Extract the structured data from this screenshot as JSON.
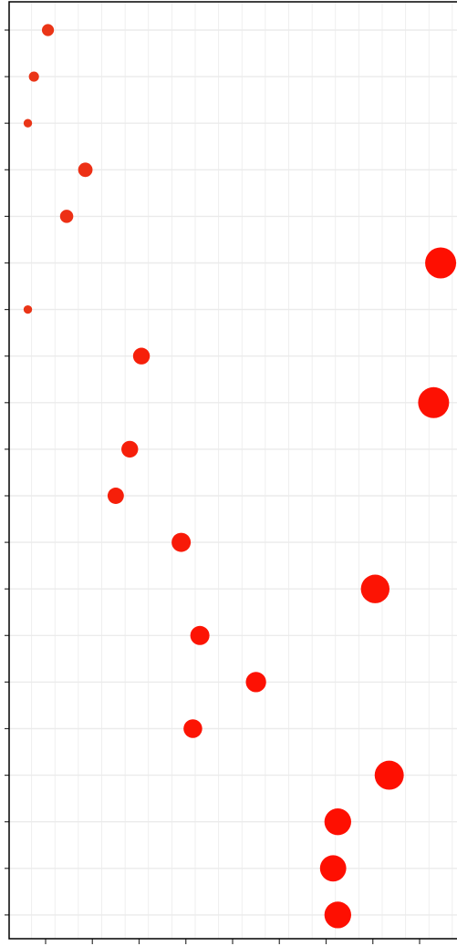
{
  "chart_data": {
    "type": "scatter",
    "title": "",
    "xlabel": "",
    "ylabel": "",
    "grid": true,
    "legend": "none",
    "colors": {
      "point_dark": "#e8391a",
      "point_bright": "#ff0d00",
      "grid": "#ebebeb",
      "frame": "#000000"
    },
    "x_ticks": [
      1,
      2,
      3,
      4,
      5,
      6,
      7,
      8,
      9
    ],
    "xlim": [
      0.2,
      9.8
    ],
    "rows": 20,
    "points": [
      {
        "row": 1,
        "x": 1.05,
        "size": 0.2,
        "shade": 0.1
      },
      {
        "row": 2,
        "x": 0.75,
        "size": 0.12,
        "shade": 0.08
      },
      {
        "row": 3,
        "x": 0.62,
        "size": 0.05,
        "shade": 0.1
      },
      {
        "row": 4,
        "x": 1.85,
        "size": 0.3,
        "shade": 0.2
      },
      {
        "row": 5,
        "x": 1.45,
        "size": 0.25,
        "shade": 0.2
      },
      {
        "row": 6,
        "x": 9.45,
        "size": 1.0,
        "shade": 0.95
      },
      {
        "row": 7,
        "x": 0.62,
        "size": 0.05,
        "shade": 0.1
      },
      {
        "row": 8,
        "x": 3.05,
        "size": 0.4,
        "shade": 0.6
      },
      {
        "row": 9,
        "x": 9.3,
        "size": 1.0,
        "shade": 0.9
      },
      {
        "row": 10,
        "x": 2.8,
        "size": 0.4,
        "shade": 0.6
      },
      {
        "row": 11,
        "x": 2.5,
        "size": 0.38,
        "shade": 0.6
      },
      {
        "row": 12,
        "x": 3.9,
        "size": 0.5,
        "shade": 0.7
      },
      {
        "row": 13,
        "x": 8.05,
        "size": 0.9,
        "shade": 0.85
      },
      {
        "row": 14,
        "x": 4.3,
        "size": 0.5,
        "shade": 0.85
      },
      {
        "row": 15,
        "x": 5.5,
        "size": 0.55,
        "shade": 0.9
      },
      {
        "row": 16,
        "x": 4.15,
        "size": 0.48,
        "shade": 0.85
      },
      {
        "row": 17,
        "x": 8.35,
        "size": 0.92,
        "shade": 0.95
      },
      {
        "row": 18,
        "x": 7.25,
        "size": 0.82,
        "shade": 0.95
      },
      {
        "row": 19,
        "x": 7.15,
        "size": 0.8,
        "shade": 0.95
      },
      {
        "row": 20,
        "x": 7.25,
        "size": 0.82,
        "shade": 0.95
      }
    ]
  }
}
